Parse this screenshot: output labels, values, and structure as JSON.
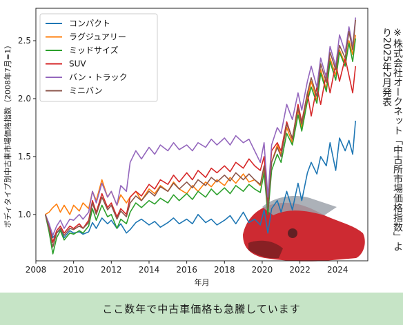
{
  "chart_data": {
    "type": "line",
    "xlabel": "年月",
    "ylabel": "ボディタイプ別中古車市場価格指数（2008年7月=1）",
    "xlim": [
      2008.0,
      2025.6
    ],
    "ylim": [
      0.6,
      2.78
    ],
    "xticks": [
      2008,
      2010,
      2012,
      2014,
      2016,
      2018,
      2020,
      2022,
      2024
    ],
    "yticks": [
      1.0,
      1.5,
      2.0,
      2.5
    ],
    "grid": false,
    "legend_position": "top-left",
    "series": [
      {
        "name": "コンパクト",
        "color": "#1f77b4",
        "x": [
          2008.5,
          2008.7,
          2008.9,
          2009.1,
          2009.3,
          2009.5,
          2009.8,
          2010.0,
          2010.3,
          2010.5,
          2010.8,
          2011.0,
          2011.2,
          2011.5,
          2011.8,
          2012.0,
          2012.3,
          2012.5,
          2012.8,
          2013.0,
          2013.3,
          2013.6,
          2014.0,
          2014.3,
          2014.6,
          2015.0,
          2015.3,
          2015.6,
          2016.0,
          2016.3,
          2016.6,
          2017.0,
          2017.3,
          2017.6,
          2018.0,
          2018.3,
          2018.6,
          2019.0,
          2019.3,
          2019.6,
          2019.9,
          2020.1,
          2020.3,
          2020.5,
          2020.8,
          2021.0,
          2021.3,
          2021.6,
          2021.9,
          2022.1,
          2022.4,
          2022.6,
          2022.9,
          2023.1,
          2023.4,
          2023.6,
          2023.9,
          2024.1,
          2024.4,
          2024.6,
          2024.8,
          2024.95
        ],
        "y": [
          1.0,
          0.92,
          0.8,
          0.84,
          0.87,
          0.8,
          0.86,
          0.84,
          0.85,
          0.83,
          0.85,
          0.93,
          0.88,
          0.97,
          0.92,
          0.95,
          0.88,
          0.92,
          0.84,
          0.87,
          0.93,
          0.96,
          0.91,
          0.94,
          0.89,
          0.93,
          0.97,
          0.92,
          0.96,
          0.92,
          1.0,
          0.93,
          0.96,
          0.91,
          0.95,
          0.99,
          0.92,
          1.02,
          0.93,
          0.96,
          0.91,
          1.04,
          0.84,
          1.05,
          1.12,
          1.02,
          1.2,
          1.04,
          1.27,
          1.12,
          1.36,
          1.45,
          1.35,
          1.5,
          1.42,
          1.62,
          1.38,
          1.66,
          1.55,
          1.64,
          1.52,
          1.81
        ]
      },
      {
        "name": "ラグジュアリー",
        "color": "#ff7f0e",
        "x": [
          2008.5,
          2008.7,
          2008.9,
          2009.1,
          2009.3,
          2009.5,
          2009.8,
          2010.0,
          2010.3,
          2010.5,
          2010.8,
          2011.0,
          2011.2,
          2011.5,
          2011.8,
          2012.0,
          2012.3,
          2012.5,
          2012.8,
          2013.0,
          2013.3,
          2013.6,
          2014.0,
          2014.3,
          2014.6,
          2015.0,
          2015.3,
          2015.6,
          2016.0,
          2016.3,
          2016.6,
          2017.0,
          2017.3,
          2017.6,
          2018.0,
          2018.3,
          2018.6,
          2019.0,
          2019.3,
          2019.6,
          2019.9,
          2020.1,
          2020.3,
          2020.5,
          2020.8,
          2021.0,
          2021.3,
          2021.6,
          2021.9,
          2022.1,
          2022.4,
          2022.6,
          2022.9,
          2023.1,
          2023.4,
          2023.6,
          2023.9,
          2024.1,
          2024.4,
          2024.6,
          2024.8,
          2024.95
        ],
        "y": [
          1.0,
          1.02,
          1.06,
          1.09,
          1.02,
          1.08,
          1.0,
          1.08,
          1.03,
          1.1,
          1.05,
          1.2,
          1.12,
          1.3,
          1.15,
          1.2,
          1.08,
          1.17,
          1.1,
          1.15,
          1.2,
          1.12,
          1.22,
          1.18,
          1.25,
          1.2,
          1.28,
          1.22,
          1.18,
          1.25,
          1.2,
          1.28,
          1.24,
          1.3,
          1.25,
          1.32,
          1.27,
          1.35,
          1.28,
          1.3,
          1.25,
          1.4,
          1.05,
          1.45,
          1.6,
          1.52,
          1.75,
          1.62,
          1.9,
          1.75,
          2.0,
          2.15,
          1.98,
          2.25,
          2.08,
          2.35,
          2.2,
          2.42,
          2.3,
          2.5,
          2.38,
          2.55
        ]
      },
      {
        "name": "ミッドサイズ",
        "color": "#2ca02c",
        "x": [
          2008.5,
          2008.7,
          2008.9,
          2009.1,
          2009.3,
          2009.5,
          2009.8,
          2010.0,
          2010.3,
          2010.5,
          2010.8,
          2011.0,
          2011.2,
          2011.5,
          2011.8,
          2012.0,
          2012.3,
          2012.5,
          2012.8,
          2013.0,
          2013.3,
          2013.6,
          2014.0,
          2014.3,
          2014.6,
          2015.0,
          2015.3,
          2015.6,
          2016.0,
          2016.3,
          2016.6,
          2017.0,
          2017.3,
          2017.6,
          2018.0,
          2018.3,
          2018.6,
          2019.0,
          2019.3,
          2019.6,
          2019.9,
          2020.1,
          2020.3,
          2020.5,
          2020.8,
          2021.0,
          2021.3,
          2021.6,
          2021.9,
          2022.1,
          2022.4,
          2022.6,
          2022.9,
          2023.1,
          2023.4,
          2023.6,
          2023.9,
          2024.1,
          2024.4,
          2024.6,
          2024.8,
          2024.95
        ],
        "y": [
          1.0,
          0.85,
          0.66,
          0.8,
          0.86,
          0.78,
          0.84,
          0.83,
          0.86,
          0.84,
          0.9,
          1.05,
          0.95,
          1.08,
          0.98,
          1.0,
          0.88,
          0.96,
          0.92,
          1.02,
          1.1,
          1.06,
          1.12,
          1.09,
          1.14,
          1.1,
          1.17,
          1.12,
          1.18,
          1.13,
          1.2,
          1.15,
          1.22,
          1.17,
          1.23,
          1.18,
          1.25,
          1.2,
          1.26,
          1.22,
          1.19,
          1.36,
          1.0,
          1.38,
          1.52,
          1.45,
          1.7,
          1.6,
          1.86,
          1.72,
          1.98,
          2.1,
          1.96,
          2.22,
          2.06,
          2.32,
          2.16,
          2.4,
          2.28,
          2.48,
          2.32,
          2.52
        ]
      },
      {
        "name": "SUV",
        "color": "#d62728",
        "x": [
          2008.5,
          2008.7,
          2008.9,
          2009.1,
          2009.3,
          2009.5,
          2009.8,
          2010.0,
          2010.3,
          2010.5,
          2010.8,
          2011.0,
          2011.2,
          2011.5,
          2011.8,
          2012.0,
          2012.3,
          2012.5,
          2012.8,
          2013.0,
          2013.3,
          2013.6,
          2014.0,
          2014.3,
          2014.6,
          2015.0,
          2015.3,
          2015.6,
          2016.0,
          2016.3,
          2016.6,
          2017.0,
          2017.3,
          2017.6,
          2018.0,
          2018.3,
          2018.6,
          2019.0,
          2019.3,
          2019.6,
          2019.9,
          2020.1,
          2020.3,
          2020.5,
          2020.8,
          2021.0,
          2021.3,
          2021.6,
          2021.9,
          2022.1,
          2022.4,
          2022.6,
          2022.9,
          2023.1,
          2023.4,
          2023.6,
          2023.9,
          2024.1,
          2024.4,
          2024.6,
          2024.8,
          2024.95
        ],
        "y": [
          1.0,
          0.9,
          0.76,
          0.86,
          0.9,
          0.84,
          0.9,
          0.88,
          0.92,
          0.88,
          0.95,
          1.12,
          1.02,
          1.18,
          1.06,
          1.1,
          0.98,
          1.05,
          1.0,
          1.15,
          1.2,
          1.16,
          1.26,
          1.22,
          1.3,
          1.26,
          1.34,
          1.28,
          1.36,
          1.3,
          1.38,
          1.32,
          1.4,
          1.36,
          1.42,
          1.37,
          1.45,
          1.4,
          1.48,
          1.42,
          1.38,
          1.5,
          1.12,
          1.55,
          1.62,
          1.55,
          1.8,
          1.65,
          1.95,
          1.8,
          2.05,
          1.85,
          2.1,
          1.95,
          2.22,
          2.05,
          2.3,
          2.15,
          2.35,
          2.2,
          2.05,
          2.28
        ]
      },
      {
        "name": "バン・トラック",
        "color": "#9467bd",
        "x": [
          2008.5,
          2008.7,
          2008.9,
          2009.1,
          2009.3,
          2009.5,
          2009.8,
          2010.0,
          2010.3,
          2010.5,
          2010.8,
          2011.0,
          2011.2,
          2011.5,
          2011.8,
          2012.0,
          2012.3,
          2012.5,
          2012.8,
          2013.0,
          2013.3,
          2013.6,
          2014.0,
          2014.3,
          2014.6,
          2015.0,
          2015.3,
          2015.6,
          2016.0,
          2016.3,
          2016.6,
          2017.0,
          2017.3,
          2017.6,
          2018.0,
          2018.3,
          2018.6,
          2019.0,
          2019.3,
          2019.6,
          2019.9,
          2020.1,
          2020.3,
          2020.5,
          2020.8,
          2021.0,
          2021.3,
          2021.6,
          2021.9,
          2022.1,
          2022.4,
          2022.6,
          2022.9,
          2023.1,
          2023.4,
          2023.6,
          2023.9,
          2024.1,
          2024.4,
          2024.6,
          2024.8,
          2024.95
        ],
        "y": [
          1.0,
          0.92,
          0.82,
          0.9,
          0.95,
          0.88,
          0.96,
          0.95,
          1.0,
          0.96,
          1.02,
          1.2,
          1.1,
          1.27,
          1.15,
          1.2,
          1.08,
          1.25,
          1.2,
          1.45,
          1.55,
          1.48,
          1.58,
          1.52,
          1.6,
          1.55,
          1.62,
          1.56,
          1.6,
          1.55,
          1.62,
          1.58,
          1.65,
          1.6,
          1.66,
          1.6,
          1.68,
          1.62,
          1.65,
          1.55,
          1.45,
          1.62,
          1.15,
          1.6,
          1.75,
          1.7,
          1.95,
          1.82,
          2.05,
          1.9,
          2.15,
          2.28,
          2.1,
          2.35,
          2.18,
          2.45,
          2.28,
          2.55,
          2.4,
          2.62,
          2.45,
          2.7
        ]
      },
      {
        "name": "ミニバン",
        "color": "#8c564b",
        "x": [
          2008.5,
          2008.7,
          2008.9,
          2009.1,
          2009.3,
          2009.5,
          2009.8,
          2010.0,
          2010.3,
          2010.5,
          2010.8,
          2011.0,
          2011.2,
          2011.5,
          2011.8,
          2012.0,
          2012.3,
          2012.5,
          2012.8,
          2013.0,
          2013.3,
          2013.6,
          2014.0,
          2014.3,
          2014.6,
          2015.0,
          2015.3,
          2015.6,
          2016.0,
          2016.3,
          2016.6,
          2017.0,
          2017.3,
          2017.6,
          2018.0,
          2018.3,
          2018.6,
          2019.0,
          2019.3,
          2019.6,
          2019.9,
          2020.1,
          2020.3,
          2020.5,
          2020.8,
          2021.0,
          2021.3,
          2021.6,
          2021.9,
          2022.1,
          2022.4,
          2022.6,
          2022.9,
          2023.1,
          2023.4,
          2023.6,
          2023.9,
          2024.1,
          2024.4,
          2024.6,
          2024.8,
          2024.95
        ],
        "y": [
          1.0,
          0.88,
          0.72,
          0.84,
          0.88,
          0.82,
          0.88,
          0.87,
          0.9,
          0.88,
          0.93,
          1.1,
          1.0,
          1.15,
          1.04,
          1.08,
          0.96,
          1.03,
          0.98,
          1.1,
          1.16,
          1.12,
          1.2,
          1.16,
          1.24,
          1.2,
          1.27,
          1.22,
          1.28,
          1.23,
          1.3,
          1.25,
          1.32,
          1.28,
          1.34,
          1.29,
          1.36,
          1.3,
          1.35,
          1.3,
          1.26,
          1.42,
          1.05,
          1.45,
          1.58,
          1.5,
          1.78,
          1.66,
          1.92,
          1.78,
          2.05,
          2.18,
          2.02,
          2.3,
          2.14,
          2.4,
          2.25,
          2.46,
          2.35,
          2.58,
          2.42,
          2.68
        ]
      }
    ]
  },
  "annotation": {
    "source_note": "※株式会社オークネット「中古所市場価格指数」より2025年2月発表"
  },
  "caption": {
    "text": "ここ数年で中古車価格も急騰しています",
    "background": "#c6e4c6"
  }
}
